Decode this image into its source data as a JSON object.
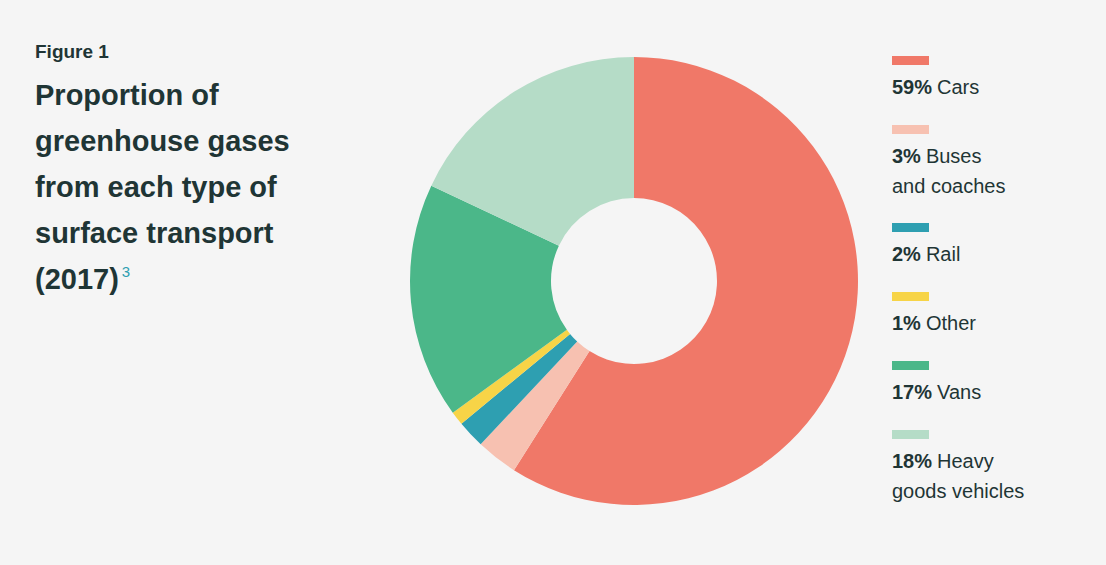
{
  "chart_data": {
    "type": "pie",
    "figure_label": "Figure 1",
    "title": "Proportion of greenhouse gases from each type of surface transport (2017)",
    "title_note": "3",
    "categories": [
      "Cars",
      "Buses and coaches",
      "Rail",
      "Other",
      "Vans",
      "Heavy goods vehicles"
    ],
    "values": [
      59,
      3,
      2,
      1,
      17,
      18
    ],
    "value_labels": [
      "59%",
      "3%",
      "2%",
      "1%",
      "17%",
      "18%"
    ],
    "colors": [
      "#f07868",
      "#f7c1b1",
      "#2e9fb1",
      "#f7d447",
      "#4bb789",
      "#b5dcc7"
    ],
    "legend": "right"
  }
}
